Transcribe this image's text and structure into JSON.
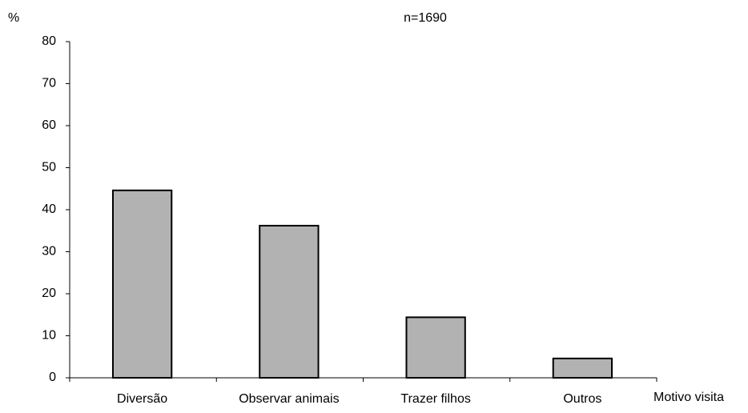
{
  "chart_data": {
    "type": "bar",
    "y_label": "%",
    "x_label": "Motivo visita",
    "annotation": "n=1690",
    "categories": [
      "Diversão",
      "Observar animais",
      "Trazer filhos",
      "Outros"
    ],
    "values": [
      44.6,
      36.2,
      14.4,
      4.6
    ],
    "color": "#b2b2b2",
    "ylim": [
      0,
      80
    ],
    "yticks": [
      0,
      10,
      20,
      30,
      40,
      50,
      60,
      70,
      80
    ],
    "grid": false
  }
}
